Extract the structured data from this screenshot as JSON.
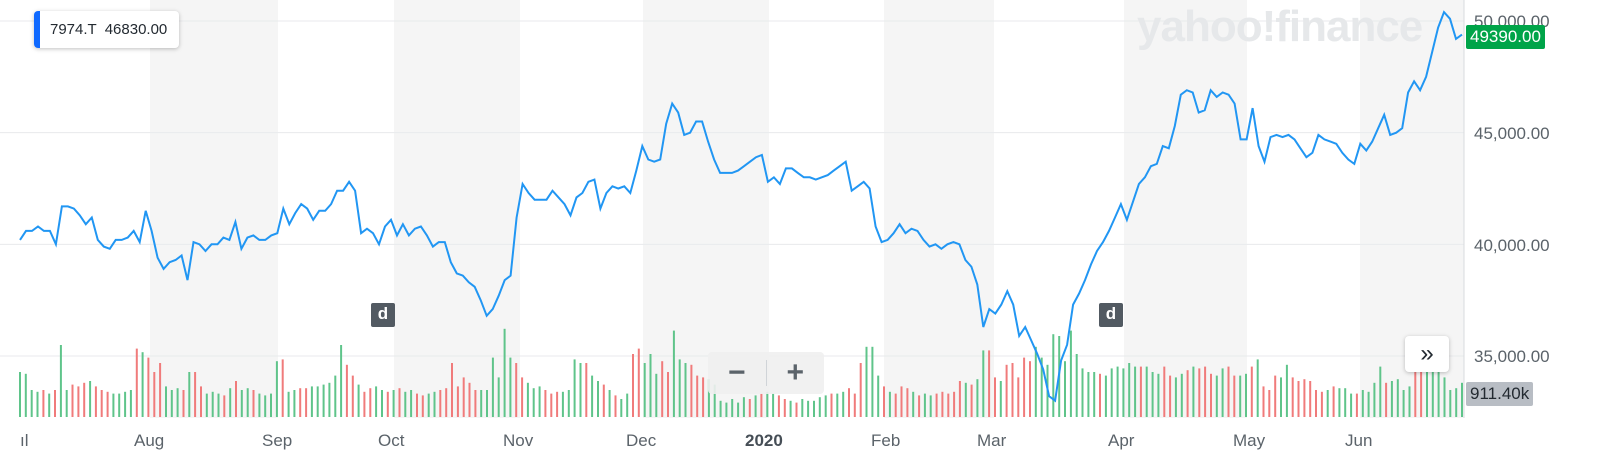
{
  "tooltip": {
    "symbol": "7974.T",
    "value": "46830.00"
  },
  "watermark": "yahoo!finance",
  "last_price_flag": "49390.00",
  "volume_flag": "911.40k",
  "markers": [
    "d",
    "d"
  ],
  "controls": {
    "zoom_out": "−",
    "zoom_in": "+",
    "expand": "»"
  },
  "colors": {
    "line": "#2196f3",
    "up_volume": "#5fc48a",
    "down_volume": "#f07b7b",
    "price_flag": "#00a449",
    "band": "#f5f5f5"
  },
  "chart_data": {
    "type": "line",
    "ylim": [
      32500,
      50500
    ],
    "y_ticks": [
      35000,
      40000,
      45000,
      50000
    ],
    "y_tick_labels": [
      "35,000.00",
      "40,000.00",
      "45,000.00",
      "50,000.00"
    ],
    "month_labels": [
      "ıl",
      "Aug",
      "Sep",
      "Oct",
      "Nov",
      "Dec",
      "2020",
      "Feb",
      "Mar",
      "Apr",
      "May",
      "Jun"
    ],
    "series": [
      {
        "values": [
          40200,
          40600,
          40600,
          40800,
          40600,
          40600,
          40000,
          41700,
          41700,
          41600,
          41300,
          40900,
          41200,
          40200,
          39900,
          39800,
          40200,
          40200,
          40300,
          40600,
          40100,
          41500,
          40600,
          39400,
          38900,
          39200,
          39300,
          39500,
          38400,
          40100,
          40000,
          39700,
          40000,
          40000,
          40300,
          40200,
          41000,
          39800,
          40300,
          40400,
          40200,
          40200,
          40400,
          40500,
          41600,
          40900,
          41400,
          41800,
          41600,
          41100,
          41500,
          41500,
          41800,
          42400,
          42400,
          42800,
          42400,
          40500,
          40700,
          40500,
          40000,
          40800,
          41100,
          40400,
          40900,
          40400,
          40700,
          40800,
          40400,
          39900,
          40100,
          40100,
          39200,
          38700,
          38600,
          38300,
          38100,
          37500,
          36800,
          37100,
          37700,
          38400,
          38600,
          41200,
          42700,
          42300,
          42000,
          42000,
          42000,
          42400,
          42100,
          41800,
          41300,
          42100,
          42300,
          42800,
          42900,
          41600,
          42300,
          42600,
          42500,
          42600,
          42300,
          43300,
          44400,
          43800,
          43700,
          43800,
          45400,
          46300,
          45900,
          44900,
          45000,
          45500,
          45500,
          44600,
          43800,
          43200,
          43200,
          43200,
          43300,
          43500,
          43700,
          43900,
          44000,
          42800,
          43000,
          42700,
          43400,
          43400,
          43200,
          43000,
          43000,
          42900,
          43000,
          43100,
          43300,
          43500,
          43700,
          42400,
          42600,
          42800,
          42500,
          40800,
          40100,
          40200,
          40500,
          40900,
          40500,
          40700,
          40600,
          40200,
          39900,
          40000,
          39800,
          40000,
          40100,
          40000,
          39300,
          39000,
          38200,
          36300,
          37100,
          36900,
          37300,
          37900,
          37300,
          35900,
          36300,
          35700,
          35100,
          34400,
          33200,
          33000,
          34800,
          35500,
          37300,
          37800,
          38400,
          39100,
          39700,
          40100,
          40600,
          41200,
          41800,
          41100,
          41900,
          42700,
          43000,
          43500,
          43600,
          44400,
          44300,
          45300,
          46700,
          46900,
          46800,
          45900,
          46000,
          46900,
          46600,
          46800,
          46700,
          46300,
          44700,
          44700,
          46100,
          44400,
          43700,
          44800,
          44900,
          44800,
          44900,
          44700,
          44300,
          43900,
          44100,
          44900,
          44700,
          44600,
          44500,
          44100,
          43800,
          43600,
          44500,
          44200,
          44600,
          45200,
          45800,
          44900,
          45000,
          45200,
          46800,
          47300,
          46900,
          47500,
          48600,
          49700,
          50400,
          50100,
          49200,
          49390
        ]
      }
    ],
    "volume_values": [
      0.5,
      0.48,
      0.3,
      0.28,
      0.3,
      0.26,
      0.3,
      0.8,
      0.3,
      0.36,
      0.34,
      0.38,
      0.4,
      0.34,
      0.3,
      0.28,
      0.26,
      0.26,
      0.28,
      0.3,
      0.76,
      0.72,
      0.66,
      0.5,
      0.6,
      0.34,
      0.3,
      0.32,
      0.3,
      0.5,
      0.5,
      0.34,
      0.26,
      0.28,
      0.26,
      0.24,
      0.32,
      0.4,
      0.3,
      0.32,
      0.3,
      0.26,
      0.24,
      0.26,
      0.62,
      0.64,
      0.28,
      0.3,
      0.32,
      0.32,
      0.34,
      0.34,
      0.36,
      0.38,
      0.46,
      0.8,
      0.58,
      0.46,
      0.36,
      0.28,
      0.32,
      0.34,
      0.3,
      0.28,
      0.3,
      0.32,
      0.28,
      0.3,
      0.26,
      0.24,
      0.26,
      0.28,
      0.3,
      0.32,
      0.6,
      0.34,
      0.44,
      0.38,
      0.3,
      0.3,
      0.3,
      0.66,
      0.44,
      0.98,
      0.66,
      0.6,
      0.44,
      0.38,
      0.32,
      0.34,
      0.3,
      0.26,
      0.28,
      0.28,
      0.3,
      0.64,
      0.6,
      0.6,
      0.46,
      0.4,
      0.36,
      0.3,
      0.24,
      0.2,
      0.26,
      0.7,
      0.76,
      0.6,
      0.7,
      0.48,
      0.62,
      0.5,
      0.96,
      0.64,
      0.6,
      0.58,
      0.46,
      0.44,
      0.42,
      0.36,
      0.18,
      0.16,
      0.2,
      0.16,
      0.22,
      0.2,
      0.24,
      0.26,
      0.28,
      0.26,
      0.24,
      0.2,
      0.18,
      0.16,
      0.2,
      0.18,
      0.18,
      0.22,
      0.24,
      0.26,
      0.26,
      0.28,
      0.32,
      0.26,
      0.6,
      0.78,
      0.78,
      0.46,
      0.34,
      0.28,
      0.26,
      0.34,
      0.32,
      0.28,
      0.24,
      0.26,
      0.24,
      0.26,
      0.28,
      0.26,
      0.28,
      0.4,
      0.38,
      0.36,
      0.42,
      0.74,
      0.74,
      0.44,
      0.4,
      0.58,
      0.6,
      0.44,
      0.66,
      0.62,
      0.78,
      0.66,
      0.58,
      0.92,
      0.9,
      0.62,
      0.96,
      0.7,
      0.54,
      0.5,
      0.5,
      0.48,
      0.46,
      0.54,
      0.56,
      0.54,
      0.6,
      0.56,
      0.56,
      0.56,
      0.5,
      0.48,
      0.56,
      0.46,
      0.44,
      0.48,
      0.52,
      0.56,
      0.54,
      0.56,
      0.48,
      0.46,
      0.54,
      0.56,
      0.46,
      0.46,
      0.48,
      0.56,
      0.64,
      0.34,
      0.3,
      0.46,
      0.44,
      0.58,
      0.44,
      0.4,
      0.42,
      0.4,
      0.3,
      0.28,
      0.3,
      0.34,
      0.32,
      0.32,
      0.26,
      0.26,
      0.3,
      0.28,
      0.38,
      0.56,
      0.38,
      0.4,
      0.42,
      0.3,
      0.34,
      0.72,
      0.72,
      0.56,
      0.56,
      0.52,
      0.44,
      0.3,
      0.32,
      0.38
    ]
  }
}
